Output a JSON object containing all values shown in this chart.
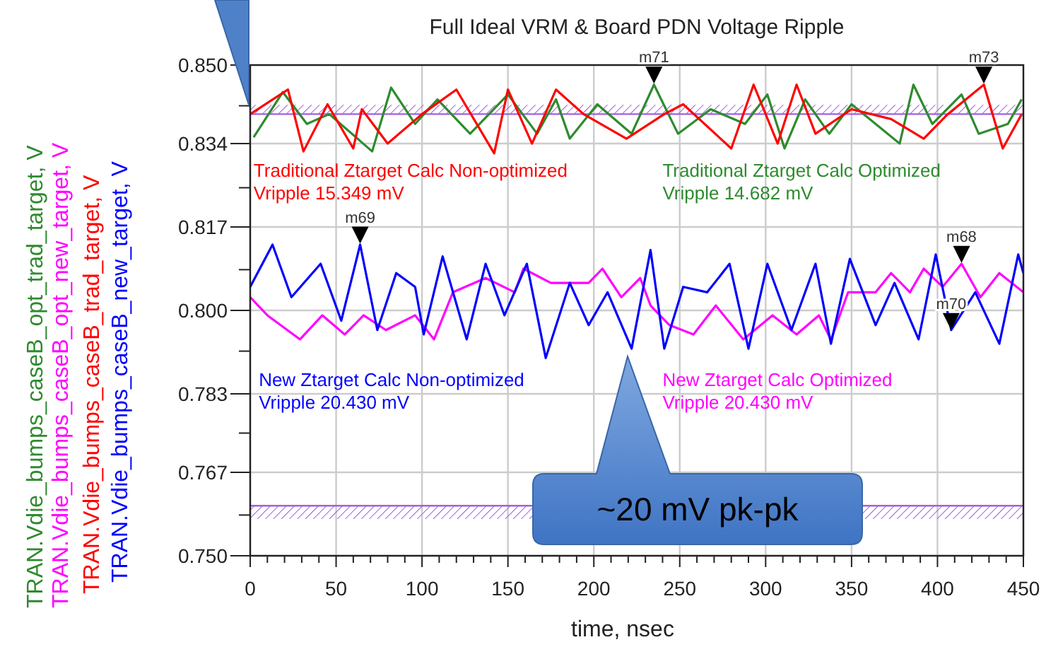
{
  "chart_data": {
    "type": "line",
    "title": "Full Ideal VRM & Board PDN Voltage Ripple",
    "xlabel": "time, nsec",
    "ylabel": "TRAN.Vdie_bumps_caseB_opt_trad_target, V\nTRAN.Vdie_bumps_caseB_opt_new_target, V\nTRAN.Vdie_bumps_caseB_trad_target, V\nTRAN.Vdie_bumps_caseB_new_target, V",
    "xlim": [
      0,
      450
    ],
    "ylim": [
      0.75,
      0.85
    ],
    "xticks": [
      0,
      {
        "value": 10,
        "label": null
      },
      {
        "value": 20,
        "label": null
      },
      {
        "value": 30,
        "label": null
      },
      {
        "value": 40,
        "label": null
      },
      50,
      {
        "value": 60,
        "label": null
      },
      {
        "value": 70,
        "label": null
      },
      {
        "value": 80,
        "label": null
      },
      {
        "value": 90,
        "label": null
      },
      100,
      {
        "value": 110,
        "label": null
      },
      {
        "value": 120,
        "label": null
      },
      {
        "value": 130,
        "label": null
      },
      {
        "value": 140,
        "label": null
      },
      150,
      {
        "value": 160,
        "label": null
      },
      {
        "value": 170,
        "label": null
      },
      {
        "value": 180,
        "label": null
      },
      {
        "value": 190,
        "label": null
      },
      200,
      {
        "value": 210,
        "label": null
      },
      {
        "value": 220,
        "label": null
      },
      {
        "value": 230,
        "label": null
      },
      {
        "value": 240,
        "label": null
      },
      250,
      {
        "value": 260,
        "label": null
      },
      {
        "value": 270,
        "label": null
      },
      {
        "value": 280,
        "label": null
      },
      {
        "value": 290,
        "label": null
      },
      300,
      {
        "value": 310,
        "label": null
      },
      {
        "value": 320,
        "label": null
      },
      {
        "value": 330,
        "label": null
      },
      {
        "value": 340,
        "label": null
      },
      350,
      {
        "value": 360,
        "label": null
      },
      {
        "value": 370,
        "label": null
      },
      {
        "value": 380,
        "label": null
      },
      {
        "value": 390,
        "label": null
      },
      400,
      {
        "value": 410,
        "label": null
      },
      {
        "value": 420,
        "label": null
      },
      {
        "value": 430,
        "label": null
      },
      {
        "value": 440,
        "label": null
      },
      450
    ],
    "yticks": [
      {
        "value": 0.75,
        "label": "0.750"
      },
      {
        "value": 0.7583,
        "label": null
      },
      {
        "value": 0.767,
        "label": "0.767"
      },
      {
        "value": 0.775,
        "label": null
      },
      {
        "value": 0.783,
        "label": "0.783"
      },
      {
        "value": 0.7917,
        "label": null
      },
      {
        "value": 0.8,
        "label": "0.800"
      },
      {
        "value": 0.8083,
        "label": null
      },
      {
        "value": 0.817,
        "label": "0.817"
      },
      {
        "value": 0.825,
        "label": null
      },
      {
        "value": 0.834,
        "label": "0.834"
      },
      {
        "value": 0.8417,
        "label": null
      },
      {
        "value": 0.85,
        "label": "0.850"
      }
    ],
    "grid": true,
    "line_style": "solid",
    "ref_lines": [
      {
        "axis": "y",
        "value": 0.84,
        "color": "#a060e0"
      },
      {
        "axis": "y",
        "value": 0.7602,
        "color": "#a060e0"
      }
    ],
    "series": [
      {
        "name": "Traditional Ztarget Calc Optimized",
        "color": "#2e8b2e",
        "x": [
          2,
          19,
          33,
          46,
          71,
          82,
          96,
          109,
          128,
          150,
          167,
          178,
          186,
          202,
          222,
          235,
          249,
          268,
          288,
          301,
          311,
          323,
          337,
          350,
          378,
          386,
          397,
          414,
          424,
          441,
          449
        ],
        "values": [
          0.8353,
          0.8445,
          0.838,
          0.84,
          0.8324,
          0.8454,
          0.838,
          0.843,
          0.836,
          0.844,
          0.836,
          0.843,
          0.835,
          0.842,
          0.836,
          0.846,
          0.836,
          0.841,
          0.838,
          0.844,
          0.833,
          0.843,
          0.836,
          0.842,
          0.834,
          0.846,
          0.838,
          0.844,
          0.836,
          0.838,
          0.843
        ]
      },
      {
        "name": "New Ztarget Calc Optimized",
        "color": "#ff00ff",
        "x": [
          0,
          10,
          29,
          42,
          55,
          66,
          79,
          96,
          107,
          118,
          137,
          154,
          159,
          175,
          197,
          205,
          216,
          227,
          233,
          244,
          258,
          271,
          287,
          304,
          318,
          331,
          338,
          348,
          364,
          373,
          384,
          392,
          403,
          414,
          425,
          436,
          450
        ],
        "values": [
          0.8027,
          0.799,
          0.7941,
          0.799,
          0.7951,
          0.799,
          0.796,
          0.799,
          0.7941,
          0.8037,
          0.8066,
          0.8037,
          0.8085,
          0.8056,
          0.8056,
          0.8085,
          0.8027,
          0.8066,
          0.801,
          0.797,
          0.7951,
          0.801,
          0.7941,
          0.799,
          0.7951,
          0.799,
          0.794,
          0.8037,
          0.8037,
          0.8076,
          0.8037,
          0.8085,
          0.8048,
          0.8095,
          0.8027,
          0.8076,
          0.8037
        ]
      },
      {
        "name": "Traditional Ztarget Calc Non-optimized",
        "color": "#ff0000",
        "x": [
          0,
          22,
          31,
          45,
          60,
          65,
          80,
          100,
          120,
          142,
          150,
          164,
          178,
          194,
          219,
          241,
          252,
          280,
          293,
          307,
          318,
          329,
          350,
          373,
          392,
          406,
          427,
          438,
          449
        ],
        "values": [
          0.84,
          0.845,
          0.8324,
          0.842,
          0.833,
          0.841,
          0.834,
          0.84,
          0.845,
          0.832,
          0.845,
          0.834,
          0.845,
          0.84,
          0.835,
          0.84,
          0.842,
          0.833,
          0.846,
          0.834,
          0.846,
          0.836,
          0.841,
          0.839,
          0.835,
          0.84,
          0.846,
          0.833,
          0.84
        ]
      },
      {
        "name": "New Ztarget Calc Non-optimized",
        "color": "#0000ff",
        "x": [
          0,
          13,
          24,
          41,
          53,
          64,
          74,
          85,
          96,
          101,
          112,
          126,
          137,
          148,
          161,
          172,
          186,
          197,
          208,
          222,
          233,
          241,
          252,
          266,
          279,
          290,
          301,
          315,
          329,
          338,
          349,
          364,
          375,
          389,
          399,
          408,
          422,
          436,
          447,
          450
        ],
        "values": [
          0.8048,
          0.8134,
          0.8027,
          0.8095,
          0.7979,
          0.8134,
          0.796,
          0.8076,
          0.8048,
          0.7951,
          0.811,
          0.7941,
          0.8095,
          0.799,
          0.8095,
          0.7903,
          0.8056,
          0.797,
          0.8037,
          0.7922,
          0.8123,
          0.7922,
          0.8048,
          0.8037,
          0.8095,
          0.7922,
          0.8095,
          0.796,
          0.8095,
          0.7932,
          0.8105,
          0.797,
          0.8056,
          0.7941,
          0.8114,
          0.796,
          0.8037,
          0.7932,
          0.8114,
          0.8076
        ]
      }
    ],
    "bands": [
      {
        "axis": "y",
        "from": 0.84,
        "to": 0.8419,
        "color": "#a060e0"
      },
      {
        "axis": "y",
        "from": 0.7575,
        "to": 0.7602,
        "color": "#a060e0"
      }
    ],
    "annotations": [
      "Vripple 14.682 mV",
      "Vripple 20.430 mV",
      "Vripple 15.349 mV",
      "Vripple 20.430 mV",
      {
        "text": "m71",
        "x": 235,
        "y": 0.8462
      },
      {
        "text": "m73",
        "x": 427,
        "y": 0.8462
      },
      {
        "text": "m69",
        "x": 64,
        "y": 0.8136
      },
      {
        "text": "m68",
        "x": 414,
        "y": 0.8097
      },
      {
        "text": "m70",
        "x": 408,
        "y": 0.796
      },
      "~20 mV pk-pk"
    ]
  }
}
